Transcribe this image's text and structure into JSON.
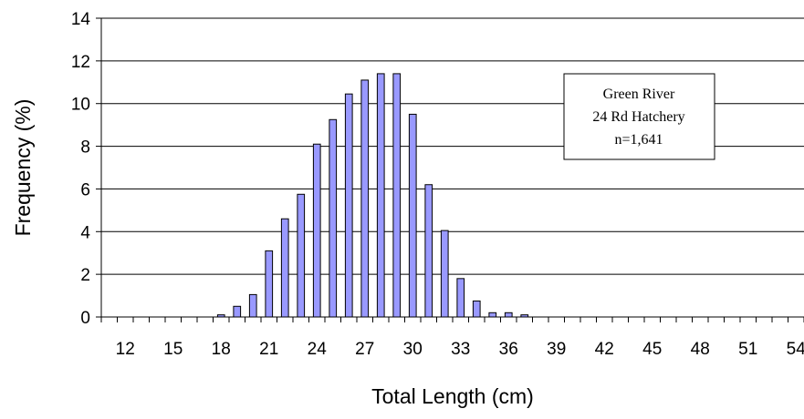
{
  "chart_data": {
    "type": "bar",
    "xlabel": "Total Length (cm)",
    "ylabel": "Frequency (%)",
    "ylim": [
      0,
      14
    ],
    "yticks": [
      0,
      2,
      4,
      6,
      8,
      10,
      12,
      14
    ],
    "xlim": [
      11,
      55
    ],
    "xtick_labels": [
      "12",
      "15",
      "18",
      "21",
      "24",
      "27",
      "30",
      "33",
      "36",
      "39",
      "42",
      "45",
      "48",
      "51",
      "54"
    ],
    "grid": "horizontal",
    "bar_color": "#9999ff",
    "bar_edge_color": "#000000",
    "legend_position": "top-right",
    "annotation": [
      "Green River",
      "24 Rd Hatchery",
      "n=1,641"
    ],
    "x": [
      12,
      13,
      14,
      15,
      16,
      17,
      18,
      19,
      20,
      21,
      22,
      23,
      24,
      25,
      26,
      27,
      28,
      29,
      30,
      31,
      32,
      33,
      34,
      35,
      36,
      37,
      38,
      39,
      40,
      41,
      42,
      43,
      44,
      45,
      46,
      47,
      48,
      49,
      50,
      51,
      52,
      53,
      54
    ],
    "values": [
      0,
      0,
      0,
      0,
      0,
      0,
      0.1,
      0.5,
      1.05,
      3.1,
      4.6,
      5.75,
      8.1,
      9.25,
      10.45,
      11.1,
      11.4,
      11.4,
      9.5,
      6.2,
      4.05,
      1.8,
      0.75,
      0.2,
      0.2,
      0.1,
      0,
      0,
      0,
      0,
      0,
      0,
      0,
      0,
      0,
      0,
      0,
      0,
      0,
      0,
      0,
      0,
      0
    ]
  }
}
